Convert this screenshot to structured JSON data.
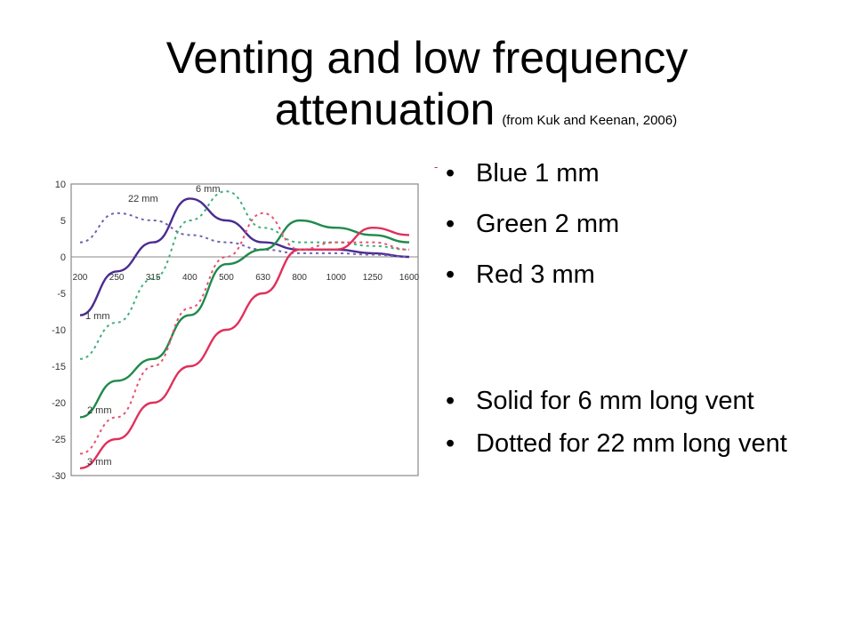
{
  "slide": {
    "title_line1": "Venting and low frequency",
    "title_line2": "attenuation",
    "source": "(from Kuk and Keenan, 2006)"
  },
  "bullets": [
    "Blue   1 mm",
    "Green 2 mm",
    "Red    3 mm",
    "Solid for 6 mm long vent",
    "Dotted for 22 mm long vent"
  ],
  "colors": {
    "blue": "#4b2c8f",
    "green": "#1f8a4c",
    "red": "#e0305a",
    "dotted_blue": "#7460b0",
    "dotted_green": "#3fb07a",
    "dotted_red": "#e8506f"
  },
  "chart_data": {
    "type": "line",
    "title": "",
    "xlabel": "",
    "ylabel": "",
    "categories": [
      "200",
      "250",
      "315",
      "400",
      "500",
      "630",
      "800",
      "1000",
      "1250",
      "1600"
    ],
    "y_ticks": [
      "10",
      "5",
      "0",
      "-5",
      "-10",
      "-15",
      "-20",
      "-25",
      "-30"
    ],
    "ylim": [
      -30,
      10
    ],
    "grid": false,
    "annotations": [
      {
        "text": "22 mm",
        "near": "dotted-blue-peak"
      },
      {
        "text": "6 mm",
        "near": "solid-blue-peak"
      },
      {
        "text": "1 mm",
        "near": "solid-blue-start"
      },
      {
        "text": "2 mm",
        "near": "solid-green-start"
      },
      {
        "text": "3 mm",
        "near": "solid-red-start"
      }
    ],
    "series": [
      {
        "color": "blue",
        "style": "solid",
        "values": [
          -8,
          -2,
          2,
          8,
          5,
          2,
          1,
          1,
          0.5,
          0
        ]
      },
      {
        "color": "blue",
        "style": "dotted",
        "values": [
          2,
          6,
          5,
          3,
          2,
          1,
          0.5,
          0.5,
          0.3,
          0
        ]
      },
      {
        "color": "green",
        "style": "solid",
        "values": [
          -22,
          -17,
          -14,
          -8,
          -1,
          1,
          5,
          4,
          3,
          2
        ]
      },
      {
        "color": "green",
        "style": "dotted",
        "values": [
          -14,
          -9,
          -3,
          5,
          9,
          4,
          2,
          2,
          1.5,
          1
        ]
      },
      {
        "color": "red",
        "style": "solid",
        "values": [
          -29,
          -25,
          -20,
          -15,
          -10,
          -5,
          1,
          1,
          4,
          3
        ]
      },
      {
        "color": "red",
        "style": "dotted",
        "values": [
          -27,
          -22,
          -15,
          -7,
          0,
          6,
          1,
          2,
          2,
          1
        ]
      }
    ]
  }
}
